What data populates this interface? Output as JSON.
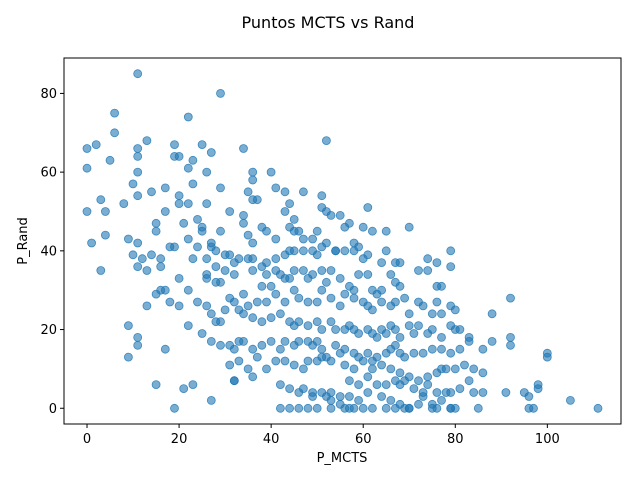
{
  "chart_data": {
    "type": "scatter",
    "title": "Puntos MCTS vs Rand",
    "xlabel": "P_MCTS",
    "ylabel": "P_Rand",
    "xlim": [
      -5,
      116
    ],
    "ylim": [
      -4,
      89
    ],
    "xticks": [
      "0",
      "20",
      "40",
      "60",
      "80",
      "100"
    ],
    "xtick_values": [
      0,
      20,
      40,
      60,
      80,
      100
    ],
    "yticks": [
      "0",
      "20",
      "40",
      "60",
      "80"
    ],
    "ytick_values": [
      0,
      20,
      40,
      60,
      80
    ],
    "grid": false,
    "legend": "none",
    "marker_color": "#1f77b4",
    "marker_alpha": 0.6,
    "points": [
      [
        11,
        85
      ],
      [
        29,
        80
      ],
      [
        6,
        75
      ],
      [
        22,
        74
      ],
      [
        6,
        70
      ],
      [
        13,
        68
      ],
      [
        52,
        68
      ],
      [
        0,
        66
      ],
      [
        2,
        67
      ],
      [
        11,
        66
      ],
      [
        19,
        67
      ],
      [
        25,
        67
      ],
      [
        27,
        65
      ],
      [
        34,
        66
      ],
      [
        5,
        63
      ],
      [
        11,
        64
      ],
      [
        20,
        64
      ],
      [
        23,
        63
      ],
      [
        19,
        64
      ],
      [
        0,
        61
      ],
      [
        11,
        60
      ],
      [
        22,
        61
      ],
      [
        26,
        60
      ],
      [
        36,
        60
      ],
      [
        40,
        60
      ],
      [
        36,
        58
      ],
      [
        10,
        57
      ],
      [
        14,
        55
      ],
      [
        17,
        56
      ],
      [
        23,
        57
      ],
      [
        29,
        56
      ],
      [
        35,
        55
      ],
      [
        41,
        56
      ],
      [
        47,
        55
      ],
      [
        43,
        55
      ],
      [
        51,
        54
      ],
      [
        11,
        54
      ],
      [
        3,
        53
      ],
      [
        8,
        52
      ],
      [
        20,
        54
      ],
      [
        22,
        52
      ],
      [
        20,
        52
      ],
      [
        26,
        52
      ],
      [
        31,
        50
      ],
      [
        37,
        53
      ],
      [
        36,
        53
      ],
      [
        44,
        52
      ],
      [
        43,
        50
      ],
      [
        45,
        48
      ],
      [
        51,
        51
      ],
      [
        52,
        50
      ],
      [
        53,
        49
      ],
      [
        55,
        49
      ],
      [
        56,
        46
      ],
      [
        61,
        51
      ],
      [
        70,
        46
      ],
      [
        4,
        50
      ],
      [
        0,
        50
      ],
      [
        17,
        50
      ],
      [
        15,
        47
      ],
      [
        21,
        47
      ],
      [
        24,
        48
      ],
      [
        25,
        46
      ],
      [
        25,
        45
      ],
      [
        29,
        45
      ],
      [
        34,
        49
      ],
      [
        34,
        47
      ],
      [
        38,
        46
      ],
      [
        39,
        45
      ],
      [
        35,
        44
      ],
      [
        36,
        42
      ],
      [
        41,
        43
      ],
      [
        44,
        46
      ],
      [
        45,
        45
      ],
      [
        46,
        45
      ],
      [
        47,
        43
      ],
      [
        49,
        43
      ],
      [
        50,
        45
      ],
      [
        51,
        41
      ],
      [
        52,
        42
      ],
      [
        54,
        40
      ],
      [
        57,
        47
      ],
      [
        58,
        42
      ],
      [
        60,
        46
      ],
      [
        62,
        45
      ],
      [
        65,
        45
      ],
      [
        4,
        44
      ],
      [
        9,
        43
      ],
      [
        11,
        42
      ],
      [
        1,
        42
      ],
      [
        15,
        45
      ],
      [
        22,
        43
      ],
      [
        24,
        41
      ],
      [
        27,
        41
      ],
      [
        27,
        42
      ],
      [
        28,
        40
      ],
      [
        30,
        39
      ],
      [
        31,
        39
      ],
      [
        33,
        38
      ],
      [
        35,
        38
      ],
      [
        36,
        38
      ],
      [
        39,
        37
      ],
      [
        41,
        38
      ],
      [
        43,
        39
      ],
      [
        44,
        40
      ],
      [
        45,
        40
      ],
      [
        47,
        40
      ],
      [
        49,
        40
      ],
      [
        50,
        39
      ],
      [
        54,
        40
      ],
      [
        56,
        40
      ],
      [
        58,
        40
      ],
      [
        59,
        41
      ],
      [
        60,
        38
      ],
      [
        61,
        39
      ],
      [
        64,
        37
      ],
      [
        65,
        40
      ],
      [
        67,
        37
      ],
      [
        68,
        37
      ],
      [
        74,
        38
      ],
      [
        76,
        37
      ],
      [
        79,
        40
      ],
      [
        10,
        39
      ],
      [
        11,
        36
      ],
      [
        12,
        38
      ],
      [
        14,
        39
      ],
      [
        16,
        38
      ],
      [
        16,
        36
      ],
      [
        18,
        41
      ],
      [
        19,
        41
      ],
      [
        23,
        38
      ],
      [
        26,
        38
      ],
      [
        28,
        36
      ],
      [
        30,
        35
      ],
      [
        32,
        34
      ],
      [
        32,
        37
      ],
      [
        36,
        35
      ],
      [
        38,
        36
      ],
      [
        39,
        34
      ],
      [
        41,
        35
      ],
      [
        42,
        34
      ],
      [
        43,
        33
      ],
      [
        44,
        33
      ],
      [
        45,
        35
      ],
      [
        47,
        35
      ],
      [
        48,
        33
      ],
      [
        49,
        34
      ],
      [
        51,
        35
      ],
      [
        53,
        35
      ],
      [
        55,
        33
      ],
      [
        57,
        31
      ],
      [
        58,
        30
      ],
      [
        59,
        34
      ],
      [
        61,
        34
      ],
      [
        62,
        30
      ],
      [
        63,
        29
      ],
      [
        64,
        30
      ],
      [
        66,
        34
      ],
      [
        67,
        32
      ],
      [
        68,
        31
      ],
      [
        72,
        35
      ],
      [
        74,
        35
      ],
      [
        76,
        31
      ],
      [
        77,
        31
      ],
      [
        79,
        36
      ],
      [
        3,
        35
      ],
      [
        13,
        35
      ],
      [
        16,
        30
      ],
      [
        17,
        30
      ],
      [
        20,
        33
      ],
      [
        22,
        30
      ],
      [
        26,
        34
      ],
      [
        26,
        33
      ],
      [
        28,
        32
      ],
      [
        29,
        32
      ],
      [
        31,
        28
      ],
      [
        32,
        27
      ],
      [
        34,
        29
      ],
      [
        37,
        27
      ],
      [
        38,
        31
      ],
      [
        39,
        27
      ],
      [
        40,
        31
      ],
      [
        41,
        29
      ],
      [
        43,
        27
      ],
      [
        45,
        30
      ],
      [
        46,
        28
      ],
      [
        48,
        27
      ],
      [
        50,
        27
      ],
      [
        51,
        30
      ],
      [
        52,
        32
      ],
      [
        53,
        28
      ],
      [
        55,
        26
      ],
      [
        56,
        29
      ],
      [
        58,
        28
      ],
      [
        60,
        27
      ],
      [
        61,
        26
      ],
      [
        62,
        25
      ],
      [
        64,
        27
      ],
      [
        66,
        26
      ],
      [
        67,
        27
      ],
      [
        69,
        28
      ],
      [
        70,
        24
      ],
      [
        72,
        27
      ],
      [
        73,
        26
      ],
      [
        75,
        24
      ],
      [
        76,
        27
      ],
      [
        77,
        24
      ],
      [
        79,
        26
      ],
      [
        80,
        25
      ],
      [
        88,
        24
      ],
      [
        92,
        28
      ],
      [
        13,
        26
      ],
      [
        15,
        29
      ],
      [
        18,
        27
      ],
      [
        20,
        26
      ],
      [
        24,
        27
      ],
      [
        26,
        26
      ],
      [
        27,
        24
      ],
      [
        28,
        22
      ],
      [
        29,
        22
      ],
      [
        30,
        25
      ],
      [
        33,
        25
      ],
      [
        34,
        24
      ],
      [
        35,
        26
      ],
      [
        36,
        23
      ],
      [
        38,
        22
      ],
      [
        40,
        23
      ],
      [
        42,
        24
      ],
      [
        44,
        22
      ],
      [
        45,
        21
      ],
      [
        46,
        22
      ],
      [
        48,
        21
      ],
      [
        50,
        22
      ],
      [
        51,
        20
      ],
      [
        53,
        22
      ],
      [
        54,
        20
      ],
      [
        56,
        20
      ],
      [
        57,
        21
      ],
      [
        58,
        20
      ],
      [
        59,
        19
      ],
      [
        61,
        20
      ],
      [
        62,
        19
      ],
      [
        63,
        18
      ],
      [
        64,
        20
      ],
      [
        65,
        19
      ],
      [
        66,
        21
      ],
      [
        67,
        20
      ],
      [
        68,
        18
      ],
      [
        70,
        21
      ],
      [
        71,
        19
      ],
      [
        72,
        21
      ],
      [
        74,
        19
      ],
      [
        75,
        20
      ],
      [
        77,
        18
      ],
      [
        79,
        21
      ],
      [
        80,
        20
      ],
      [
        81,
        20
      ],
      [
        83,
        18
      ],
      [
        88,
        17
      ],
      [
        92,
        18
      ],
      [
        92,
        16
      ],
      [
        9,
        21
      ],
      [
        11,
        18
      ],
      [
        11,
        16
      ],
      [
        17,
        15
      ],
      [
        22,
        21
      ],
      [
        25,
        19
      ],
      [
        27,
        17
      ],
      [
        29,
        16
      ],
      [
        31,
        16
      ],
      [
        32,
        15
      ],
      [
        33,
        17
      ],
      [
        34,
        17
      ],
      [
        36,
        15
      ],
      [
        38,
        16
      ],
      [
        40,
        17
      ],
      [
        42,
        15
      ],
      [
        43,
        17
      ],
      [
        45,
        16
      ],
      [
        46,
        17
      ],
      [
        48,
        17
      ],
      [
        49,
        16
      ],
      [
        50,
        17
      ],
      [
        51,
        15
      ],
      [
        52,
        13
      ],
      [
        54,
        16
      ],
      [
        55,
        14
      ],
      [
        56,
        15
      ],
      [
        58,
        14
      ],
      [
        59,
        13
      ],
      [
        61,
        14
      ],
      [
        62,
        12
      ],
      [
        63,
        13
      ],
      [
        65,
        14
      ],
      [
        66,
        15
      ],
      [
        67,
        16
      ],
      [
        68,
        14
      ],
      [
        69,
        13
      ],
      [
        71,
        14
      ],
      [
        73,
        14
      ],
      [
        75,
        15
      ],
      [
        77,
        15
      ],
      [
        79,
        14
      ],
      [
        81,
        15
      ],
      [
        83,
        17
      ],
      [
        86,
        15
      ],
      [
        9,
        13
      ],
      [
        31,
        11
      ],
      [
        33,
        12
      ],
      [
        35,
        10
      ],
      [
        37,
        13
      ],
      [
        39,
        10
      ],
      [
        41,
        12
      ],
      [
        43,
        12
      ],
      [
        45,
        11
      ],
      [
        47,
        10
      ],
      [
        48,
        12
      ],
      [
        50,
        12
      ],
      [
        51,
        13
      ],
      [
        53,
        12
      ],
      [
        56,
        11
      ],
      [
        58,
        10
      ],
      [
        60,
        12
      ],
      [
        62,
        10
      ],
      [
        64,
        11
      ],
      [
        66,
        10
      ],
      [
        68,
        9
      ],
      [
        70,
        8
      ],
      [
        72,
        7
      ],
      [
        74,
        8
      ],
      [
        76,
        9
      ],
      [
        77,
        10
      ],
      [
        78,
        10
      ],
      [
        80,
        10
      ],
      [
        82,
        11
      ],
      [
        84,
        10
      ],
      [
        86,
        9
      ],
      [
        100,
        14
      ],
      [
        100,
        13
      ],
      [
        32,
        7
      ],
      [
        32,
        7
      ],
      [
        36,
        8
      ],
      [
        42,
        6
      ],
      [
        44,
        5
      ],
      [
        47,
        5
      ],
      [
        49,
        4
      ],
      [
        51,
        4
      ],
      [
        53,
        4
      ],
      [
        55,
        3
      ],
      [
        57,
        7
      ],
      [
        59,
        6
      ],
      [
        61,
        8
      ],
      [
        63,
        6
      ],
      [
        65,
        6
      ],
      [
        67,
        7
      ],
      [
        68,
        6
      ],
      [
        69,
        7
      ],
      [
        71,
        5
      ],
      [
        73,
        4
      ],
      [
        74,
        6
      ],
      [
        76,
        4
      ],
      [
        78,
        4
      ],
      [
        79,
        4
      ],
      [
        81,
        5
      ],
      [
        83,
        7
      ],
      [
        84,
        4
      ],
      [
        86,
        4
      ],
      [
        91,
        4
      ],
      [
        95,
        4
      ],
      [
        96,
        3
      ],
      [
        98,
        6
      ],
      [
        98,
        5
      ],
      [
        105,
        2
      ],
      [
        15,
        6
      ],
      [
        21,
        5
      ],
      [
        23,
        6
      ],
      [
        27,
        2
      ],
      [
        46,
        4
      ],
      [
        49,
        3
      ],
      [
        52,
        3
      ],
      [
        53,
        2
      ],
      [
        55,
        1
      ],
      [
        57,
        3
      ],
      [
        59,
        2
      ],
      [
        61,
        4
      ],
      [
        64,
        3
      ],
      [
        66,
        2
      ],
      [
        68,
        1
      ],
      [
        70,
        0
      ],
      [
        72,
        1
      ],
      [
        73,
        3
      ],
      [
        75,
        1
      ],
      [
        77,
        2
      ],
      [
        79,
        0
      ],
      [
        80,
        0
      ],
      [
        85,
        0
      ],
      [
        96,
        0
      ],
      [
        97,
        0
      ],
      [
        111,
        0
      ],
      [
        19,
        0
      ],
      [
        42,
        0
      ],
      [
        44,
        0
      ],
      [
        46,
        0
      ],
      [
        48,
        0
      ],
      [
        50,
        0
      ],
      [
        53,
        0
      ],
      [
        56,
        0
      ],
      [
        57,
        0
      ],
      [
        58,
        0
      ],
      [
        60,
        0
      ],
      [
        62,
        0
      ],
      [
        65,
        0
      ],
      [
        67,
        0
      ],
      [
        69,
        0
      ],
      [
        70,
        0
      ],
      [
        75,
        0
      ],
      [
        76,
        0
      ],
      [
        79,
        0
      ]
    ]
  }
}
